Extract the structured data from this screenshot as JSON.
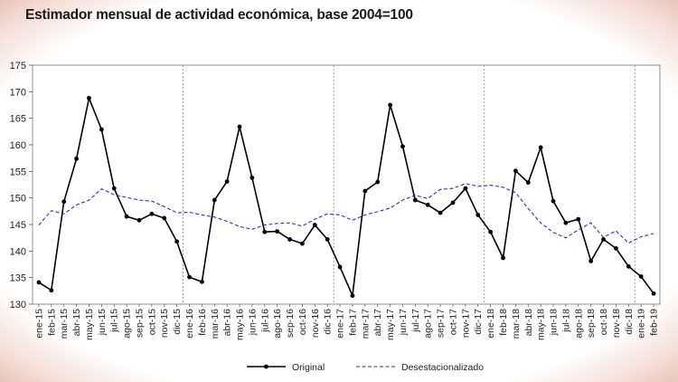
{
  "chart_data": {
    "type": "line",
    "title": "Estimador mensual de actividad económica, base 2004=100",
    "categories": [
      "ene-15",
      "feb-15",
      "mar-15",
      "abr-15",
      "may-15",
      "jun-15",
      "jul-15",
      "ago-15",
      "sep-15",
      "oct-15",
      "nov-15",
      "dic-15",
      "ene-16",
      "feb-16",
      "mar-16",
      "abr-16",
      "may-16",
      "jun-16",
      "jul-16",
      "ago-16",
      "sep-16",
      "oct-16",
      "nov-16",
      "dic-16",
      "ene-17",
      "feb-17",
      "mar-17",
      "abr-17",
      "may-17",
      "jun-17",
      "jul-17",
      "ago-17",
      "sep-17",
      "oct-17",
      "nov-17",
      "dic-17",
      "ene-18",
      "feb-18",
      "mar-18",
      "abr-18",
      "may-18",
      "jun-18",
      "jul-18",
      "ago-18",
      "sep-18",
      "oct-18",
      "nov-18",
      "dic-18",
      "ene-19",
      "feb-19"
    ],
    "series": [
      {
        "name": "Original",
        "style": "solid-markers",
        "color": "#000000",
        "values": [
          134.1,
          132.6,
          149.3,
          157.4,
          168.8,
          162.9,
          151.8,
          146.5,
          145.8,
          147.0,
          146.2,
          141.8,
          135.1,
          134.2,
          149.6,
          153.1,
          163.4,
          153.8,
          143.6,
          143.7,
          142.2,
          141.4,
          144.9,
          142.2,
          137.0,
          131.6,
          151.3,
          153.0,
          167.5,
          159.7,
          149.6,
          148.7,
          147.2,
          149.1,
          151.8,
          146.8,
          143.6,
          138.7,
          155.1,
          152.9,
          159.5,
          149.4,
          145.3,
          146.0,
          138.1,
          142.2,
          140.5,
          137.1,
          135.2,
          132.0
        ]
      },
      {
        "name": "Desestacionalizado",
        "style": "dashed",
        "color": "#2b3a8f",
        "values": [
          144.9,
          147.6,
          147.0,
          148.7,
          149.6,
          151.7,
          150.6,
          150.1,
          149.6,
          149.4,
          148.4,
          147.2,
          147.3,
          146.8,
          146.4,
          145.6,
          144.6,
          144.1,
          144.9,
          145.2,
          145.3,
          144.7,
          146.0,
          147.0,
          146.8,
          145.8,
          146.8,
          147.4,
          148.1,
          149.6,
          150.5,
          149.9,
          151.6,
          151.8,
          152.7,
          152.2,
          152.4,
          152.0,
          151.0,
          148.0,
          145.3,
          143.5,
          142.5,
          144.0,
          145.3,
          142.6,
          143.8,
          141.5,
          142.7,
          143.3
        ]
      }
    ],
    "ylim": [
      130,
      175
    ],
    "yticks": [
      130,
      135,
      140,
      145,
      150,
      155,
      160,
      165,
      170,
      175
    ],
    "year_separators_after": [
      "dic-15",
      "dic-16",
      "dic-17",
      "dic-18"
    ],
    "grid": "vertical-dotted-at-year-boundaries",
    "legend": {
      "placement": "bottom-center"
    }
  }
}
